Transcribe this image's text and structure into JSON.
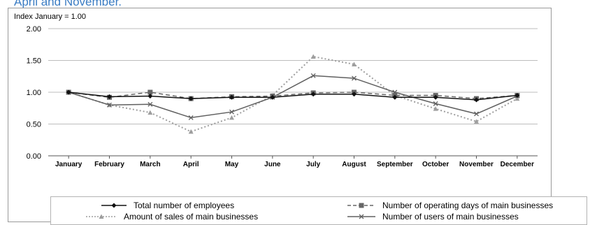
{
  "caption": "April and November.",
  "colors": {
    "employees": "#111111",
    "operating_days": "#666666",
    "sales": "#9e9e9e",
    "users": "#606060",
    "grid": "#bdbdbd"
  },
  "chart_data": {
    "type": "line",
    "title": "Index January = 1.00",
    "xlabel": "",
    "ylabel": "",
    "ylim": [
      0,
      2
    ],
    "yticks": [
      "0.00",
      "0.50",
      "1.00",
      "1.50",
      "2.00"
    ],
    "grid": true,
    "legend_position": "bottom",
    "categories": [
      "January",
      "February",
      "March",
      "April",
      "May",
      "June",
      "July",
      "August",
      "September",
      "October",
      "November",
      "December"
    ],
    "series": [
      {
        "name": "Total number of employees",
        "values": [
          1.0,
          0.93,
          0.94,
          0.9,
          0.92,
          0.92,
          0.97,
          0.97,
          0.92,
          0.92,
          0.88,
          0.95
        ]
      },
      {
        "name": "Number of operating days of main businesses",
        "values": [
          1.0,
          0.92,
          1.0,
          0.9,
          0.93,
          0.94,
          0.99,
          1.0,
          0.95,
          0.95,
          0.9,
          0.95
        ]
      },
      {
        "name": "Amount of sales of main businesses",
        "values": [
          1.0,
          0.8,
          0.68,
          0.38,
          0.6,
          0.95,
          1.56,
          1.44,
          0.95,
          0.74,
          0.54,
          0.9
        ]
      },
      {
        "name": "Number of users of main businesses",
        "values": [
          1.0,
          0.8,
          0.81,
          0.6,
          0.69,
          0.92,
          1.26,
          1.22,
          1.0,
          0.82,
          0.66,
          0.94
        ]
      }
    ]
  }
}
